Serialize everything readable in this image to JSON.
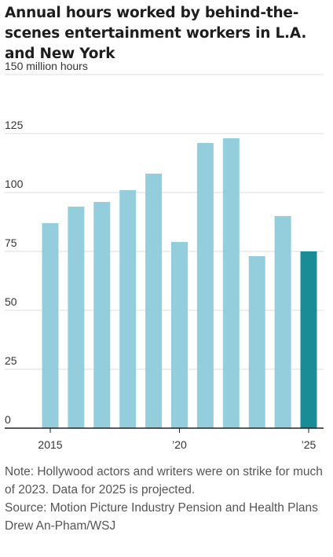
{
  "title": "Annual hours worked by behind-the-scenes entertainment workers in L.A. and New York",
  "note": "Note: Hollywood actors and writers were on strike for much of 2023. Data for 2025 is projected.",
  "source": "Source: Motion Picture Industry Pension and Health Plans",
  "credit": "Drew An-Pham/WSJ",
  "colors": {
    "bar": "#94cedc",
    "highlight": "#1a8c95",
    "grid": "#dcdcdc",
    "baseline": "#222222",
    "text": "#333333"
  },
  "chart_data": {
    "type": "bar",
    "title": "Annual hours worked by behind-the-scenes entertainment workers in L.A. and New York",
    "xlabel": "",
    "ylabel": "",
    "unit": "million hours",
    "categories": [
      "2015",
      "2016",
      "2017",
      "2018",
      "2019",
      "2020",
      "2021",
      "2022",
      "2023",
      "2024",
      "2025"
    ],
    "values": [
      87,
      94,
      96,
      101,
      108,
      79,
      121,
      123,
      73,
      90,
      75
    ],
    "highlight": [
      "2025"
    ],
    "ylim": [
      0,
      150
    ],
    "yticks": [
      0,
      25,
      50,
      75,
      100,
      125,
      150
    ],
    "ytick_labels": [
      "0",
      "25",
      "50",
      "75",
      "100",
      "125",
      "150 million hours"
    ],
    "xticks": [
      "2015",
      "2020",
      "2025"
    ],
    "xtick_labels": [
      "2015",
      "’20",
      "’25"
    ],
    "grid": true,
    "legend": "none"
  }
}
